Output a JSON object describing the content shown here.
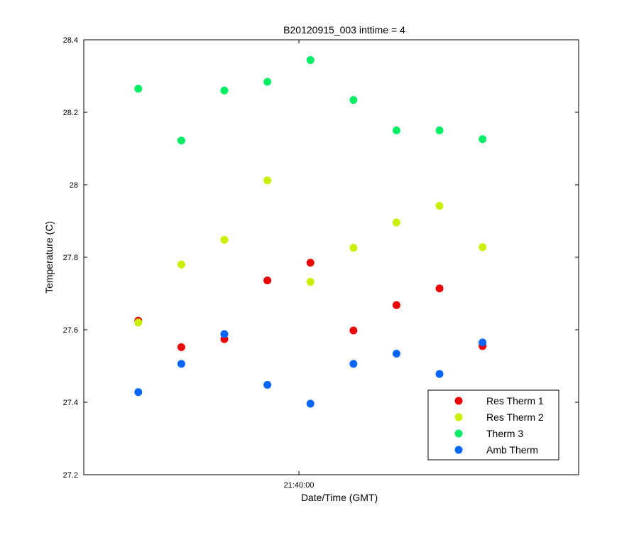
{
  "chart_data": {
    "type": "scatter",
    "title": "B20120915_003 inttime = 4",
    "xlabel": "Date/Time (GMT)",
    "ylabel": "Temperature (C)",
    "ylim": [
      27.2,
      28.4
    ],
    "yticks": [
      "27.2",
      "27.4",
      "27.6",
      "27.8",
      "28",
      "28.2",
      "28.4"
    ],
    "xlim": [
      "21:37:30",
      "21:43:15"
    ],
    "xticks": [
      "21:40:00"
    ],
    "grid": false,
    "legend_position": "bottom-right",
    "x": [
      "21:38:08",
      "21:38:38",
      "21:39:08",
      "21:39:38",
      "21:40:08",
      "21:40:38",
      "21:41:08",
      "21:41:38",
      "21:42:08"
    ],
    "series": [
      {
        "name": "Res Therm 1",
        "color": "#ee0000",
        "values": [
          27.625,
          27.552,
          27.574,
          27.736,
          27.785,
          27.598,
          27.668,
          27.714,
          27.555
        ]
      },
      {
        "name": "Res Therm 2",
        "color": "#ccee00",
        "values": [
          27.62,
          27.78,
          27.848,
          28.012,
          27.732,
          27.826,
          27.896,
          27.942,
          27.828
        ]
      },
      {
        "name": "Therm 3",
        "color": "#00ee66",
        "values": [
          28.265,
          28.122,
          28.26,
          28.284,
          28.344,
          28.234,
          28.15,
          28.15,
          28.126
        ]
      },
      {
        "name": "Amb Therm",
        "color": "#0066ff",
        "values": [
          27.428,
          27.506,
          27.588,
          27.448,
          27.396,
          27.506,
          27.534,
          27.478,
          27.565
        ]
      }
    ]
  }
}
